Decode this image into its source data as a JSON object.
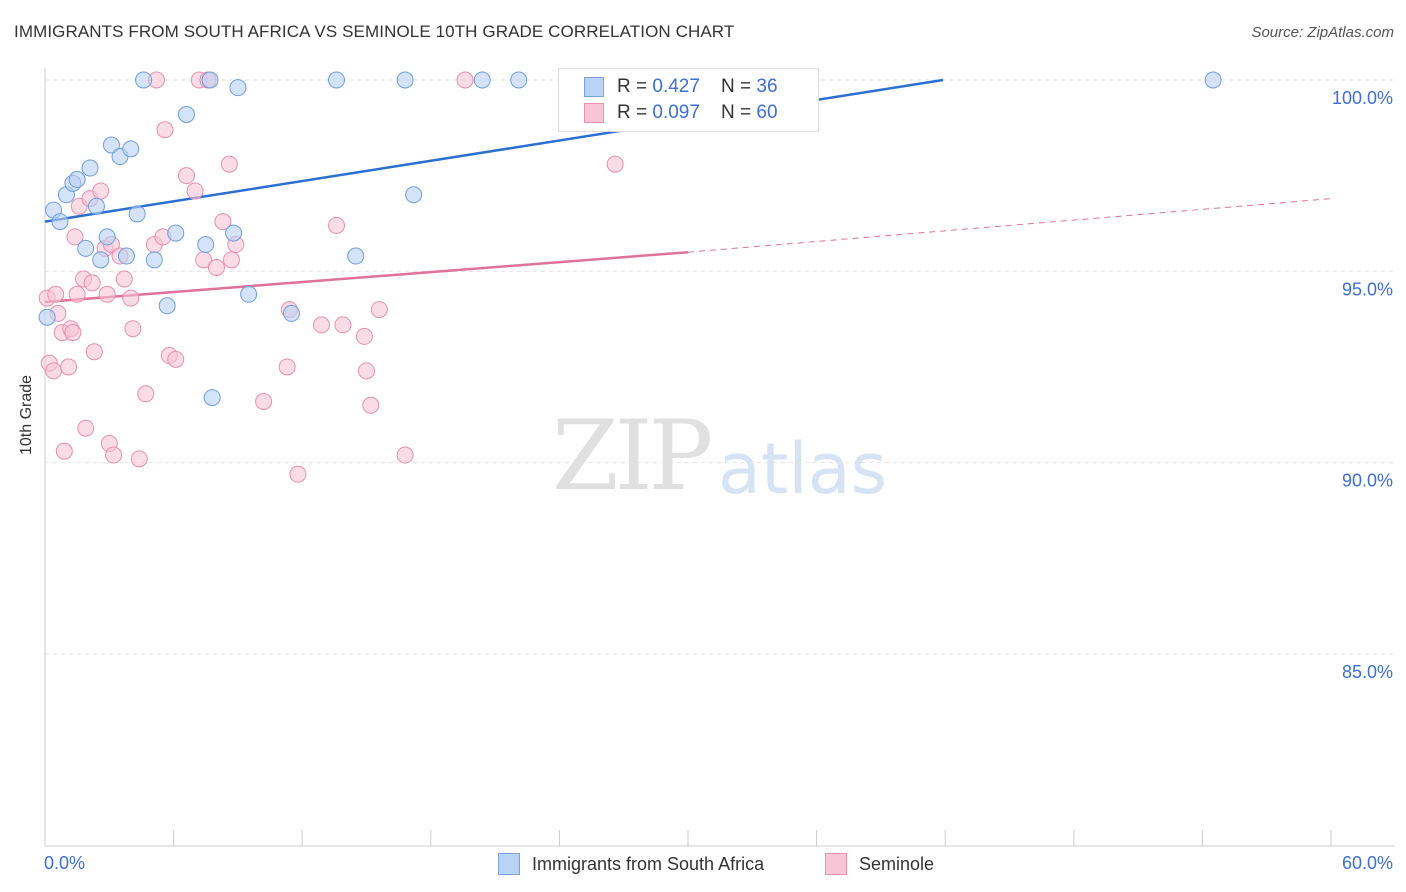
{
  "title": "IMMIGRANTS FROM SOUTH AFRICA VS SEMINOLE 10TH GRADE CORRELATION CHART",
  "source": "Source: ZipAtlas.com",
  "watermark": {
    "zip": "ZIP",
    "atlas": "atlas"
  },
  "legend": {
    "rows": [
      {
        "r_label": "R = ",
        "r_value": "0.427",
        "n_label": "N = ",
        "n_value": "36",
        "fill": "#bad3f5",
        "stroke": "#7aa3e0"
      },
      {
        "r_label": "R = ",
        "r_value": "0.097",
        "n_label": "N = ",
        "n_value": "60",
        "fill": "#f7c5d5",
        "stroke": "#ec93b1"
      }
    ]
  },
  "bottom_legend": [
    {
      "label": "Immigrants from South Africa",
      "fill": "#bad3f5",
      "stroke": "#7aa3e0"
    },
    {
      "label": "Seminole",
      "fill": "#f7c5d5",
      "stroke": "#ec93b1"
    }
  ],
  "colors": {
    "blue": "#3d6fd6",
    "blue_line": "#2a6fd1",
    "pink_line": "#e0719a",
    "blue_fill": "#b9d0f3",
    "pink_fill": "#f7c4d5",
    "blue_stroke": "#6f9ee0",
    "pink_stroke": "#ea8fae",
    "grid": "#e2e2e2",
    "axis": "#cccccc",
    "tick_text": "#3d6fd6"
  },
  "chart_data": {
    "type": "scatter",
    "title": "IMMIGRANTS FROM SOUTH AFRICA VS SEMINOLE 10TH GRADE CORRELATION CHART",
    "xlabel": "",
    "ylabel": "10th Grade",
    "xlim": [
      0,
      60
    ],
    "ylim": [
      80.5,
      100.7
    ],
    "x_tick_labels": [
      "0.0%",
      "60.0%"
    ],
    "y_ticks": [
      100,
      95,
      90,
      85
    ],
    "y_tick_labels": [
      "100.0%",
      "95.0%",
      "90.0%",
      "85.0%"
    ],
    "grid": "horizontal dashed",
    "legend_position": "top-center",
    "series": [
      {
        "name": "Immigrants from South Africa",
        "R": 0.427,
        "N": 36,
        "trend": {
          "x": [
            0,
            41.9
          ],
          "y": [
            96.3,
            100.0
          ]
        },
        "points": [
          {
            "x": 0.4,
            "y": 96.6
          },
          {
            "x": 0.7,
            "y": 96.3
          },
          {
            "x": 1.0,
            "y": 97.0
          },
          {
            "x": 1.3,
            "y": 97.3
          },
          {
            "x": 1.5,
            "y": 97.4
          },
          {
            "x": 1.9,
            "y": 95.6
          },
          {
            "x": 2.1,
            "y": 97.7
          },
          {
            "x": 2.4,
            "y": 96.7
          },
          {
            "x": 2.6,
            "y": 95.3
          },
          {
            "x": 2.9,
            "y": 95.9
          },
          {
            "x": 3.1,
            "y": 98.3
          },
          {
            "x": 3.5,
            "y": 98.0
          },
          {
            "x": 3.8,
            "y": 95.4
          },
          {
            "x": 4.0,
            "y": 98.2
          },
          {
            "x": 4.3,
            "y": 96.5
          },
          {
            "x": 4.6,
            "y": 100.0
          },
          {
            "x": 5.1,
            "y": 95.3
          },
          {
            "x": 5.7,
            "y": 94.1
          },
          {
            "x": 6.1,
            "y": 96.0
          },
          {
            "x": 6.6,
            "y": 99.1
          },
          {
            "x": 7.5,
            "y": 95.7
          },
          {
            "x": 7.7,
            "y": 100.0
          },
          {
            "x": 7.8,
            "y": 91.7
          },
          {
            "x": 8.8,
            "y": 96.0
          },
          {
            "x": 9.0,
            "y": 99.8
          },
          {
            "x": 9.5,
            "y": 94.4
          },
          {
            "x": 11.5,
            "y": 93.9
          },
          {
            "x": 13.6,
            "y": 100.0
          },
          {
            "x": 14.5,
            "y": 95.4
          },
          {
            "x": 16.8,
            "y": 100.0
          },
          {
            "x": 17.2,
            "y": 97.0
          },
          {
            "x": 20.4,
            "y": 100.0
          },
          {
            "x": 22.1,
            "y": 100.0
          },
          {
            "x": 33.5,
            "y": 100.0
          },
          {
            "x": 54.5,
            "y": 100.0
          },
          {
            "x": 0.1,
            "y": 93.8
          }
        ]
      },
      {
        "name": "Seminole",
        "R": 0.097,
        "N": 60,
        "trend": {
          "x": [
            0,
            30
          ],
          "y": [
            94.2,
            95.5
          ]
        },
        "trend_extension": {
          "x": [
            30,
            60
          ],
          "y": [
            95.5,
            96.9
          ]
        },
        "points": [
          {
            "x": 0.1,
            "y": 94.3
          },
          {
            "x": 0.2,
            "y": 92.6
          },
          {
            "x": 0.4,
            "y": 92.4
          },
          {
            "x": 0.5,
            "y": 94.4
          },
          {
            "x": 0.6,
            "y": 93.9
          },
          {
            "x": 0.8,
            "y": 93.4
          },
          {
            "x": 0.9,
            "y": 90.3
          },
          {
            "x": 1.1,
            "y": 92.5
          },
          {
            "x": 1.2,
            "y": 93.5
          },
          {
            "x": 1.3,
            "y": 93.4
          },
          {
            "x": 1.4,
            "y": 95.9
          },
          {
            "x": 1.5,
            "y": 94.4
          },
          {
            "x": 1.6,
            "y": 96.7
          },
          {
            "x": 1.8,
            "y": 94.8
          },
          {
            "x": 1.9,
            "y": 90.9
          },
          {
            "x": 2.1,
            "y": 96.9
          },
          {
            "x": 2.2,
            "y": 94.7
          },
          {
            "x": 2.3,
            "y": 92.9
          },
          {
            "x": 2.6,
            "y": 97.1
          },
          {
            "x": 2.8,
            "y": 95.6
          },
          {
            "x": 2.9,
            "y": 94.4
          },
          {
            "x": 3.0,
            "y": 90.5
          },
          {
            "x": 3.1,
            "y": 95.7
          },
          {
            "x": 3.2,
            "y": 90.2
          },
          {
            "x": 3.5,
            "y": 95.4
          },
          {
            "x": 3.7,
            "y": 94.8
          },
          {
            "x": 4.0,
            "y": 94.3
          },
          {
            "x": 4.1,
            "y": 93.5
          },
          {
            "x": 4.4,
            "y": 90.1
          },
          {
            "x": 4.7,
            "y": 91.8
          },
          {
            "x": 5.1,
            "y": 95.7
          },
          {
            "x": 5.2,
            "y": 100.0
          },
          {
            "x": 5.5,
            "y": 95.9
          },
          {
            "x": 5.6,
            "y": 98.7
          },
          {
            "x": 5.8,
            "y": 92.8
          },
          {
            "x": 6.1,
            "y": 92.7
          },
          {
            "x": 6.6,
            "y": 97.5
          },
          {
            "x": 7.0,
            "y": 97.1
          },
          {
            "x": 7.2,
            "y": 100.0
          },
          {
            "x": 7.4,
            "y": 95.3
          },
          {
            "x": 7.6,
            "y": 100.0
          },
          {
            "x": 8.0,
            "y": 95.1
          },
          {
            "x": 8.3,
            "y": 96.3
          },
          {
            "x": 8.6,
            "y": 97.8
          },
          {
            "x": 8.7,
            "y": 95.3
          },
          {
            "x": 8.9,
            "y": 95.7
          },
          {
            "x": 10.2,
            "y": 91.6
          },
          {
            "x": 11.3,
            "y": 92.5
          },
          {
            "x": 11.4,
            "y": 94.0
          },
          {
            "x": 11.8,
            "y": 89.7
          },
          {
            "x": 12.9,
            "y": 93.6
          },
          {
            "x": 13.6,
            "y": 96.2
          },
          {
            "x": 13.9,
            "y": 93.6
          },
          {
            "x": 14.9,
            "y": 93.3
          },
          {
            "x": 15.0,
            "y": 92.4
          },
          {
            "x": 15.2,
            "y": 91.5
          },
          {
            "x": 15.6,
            "y": 94.0
          },
          {
            "x": 16.8,
            "y": 90.2
          },
          {
            "x": 19.6,
            "y": 100.0
          },
          {
            "x": 26.6,
            "y": 97.8
          }
        ]
      }
    ]
  }
}
